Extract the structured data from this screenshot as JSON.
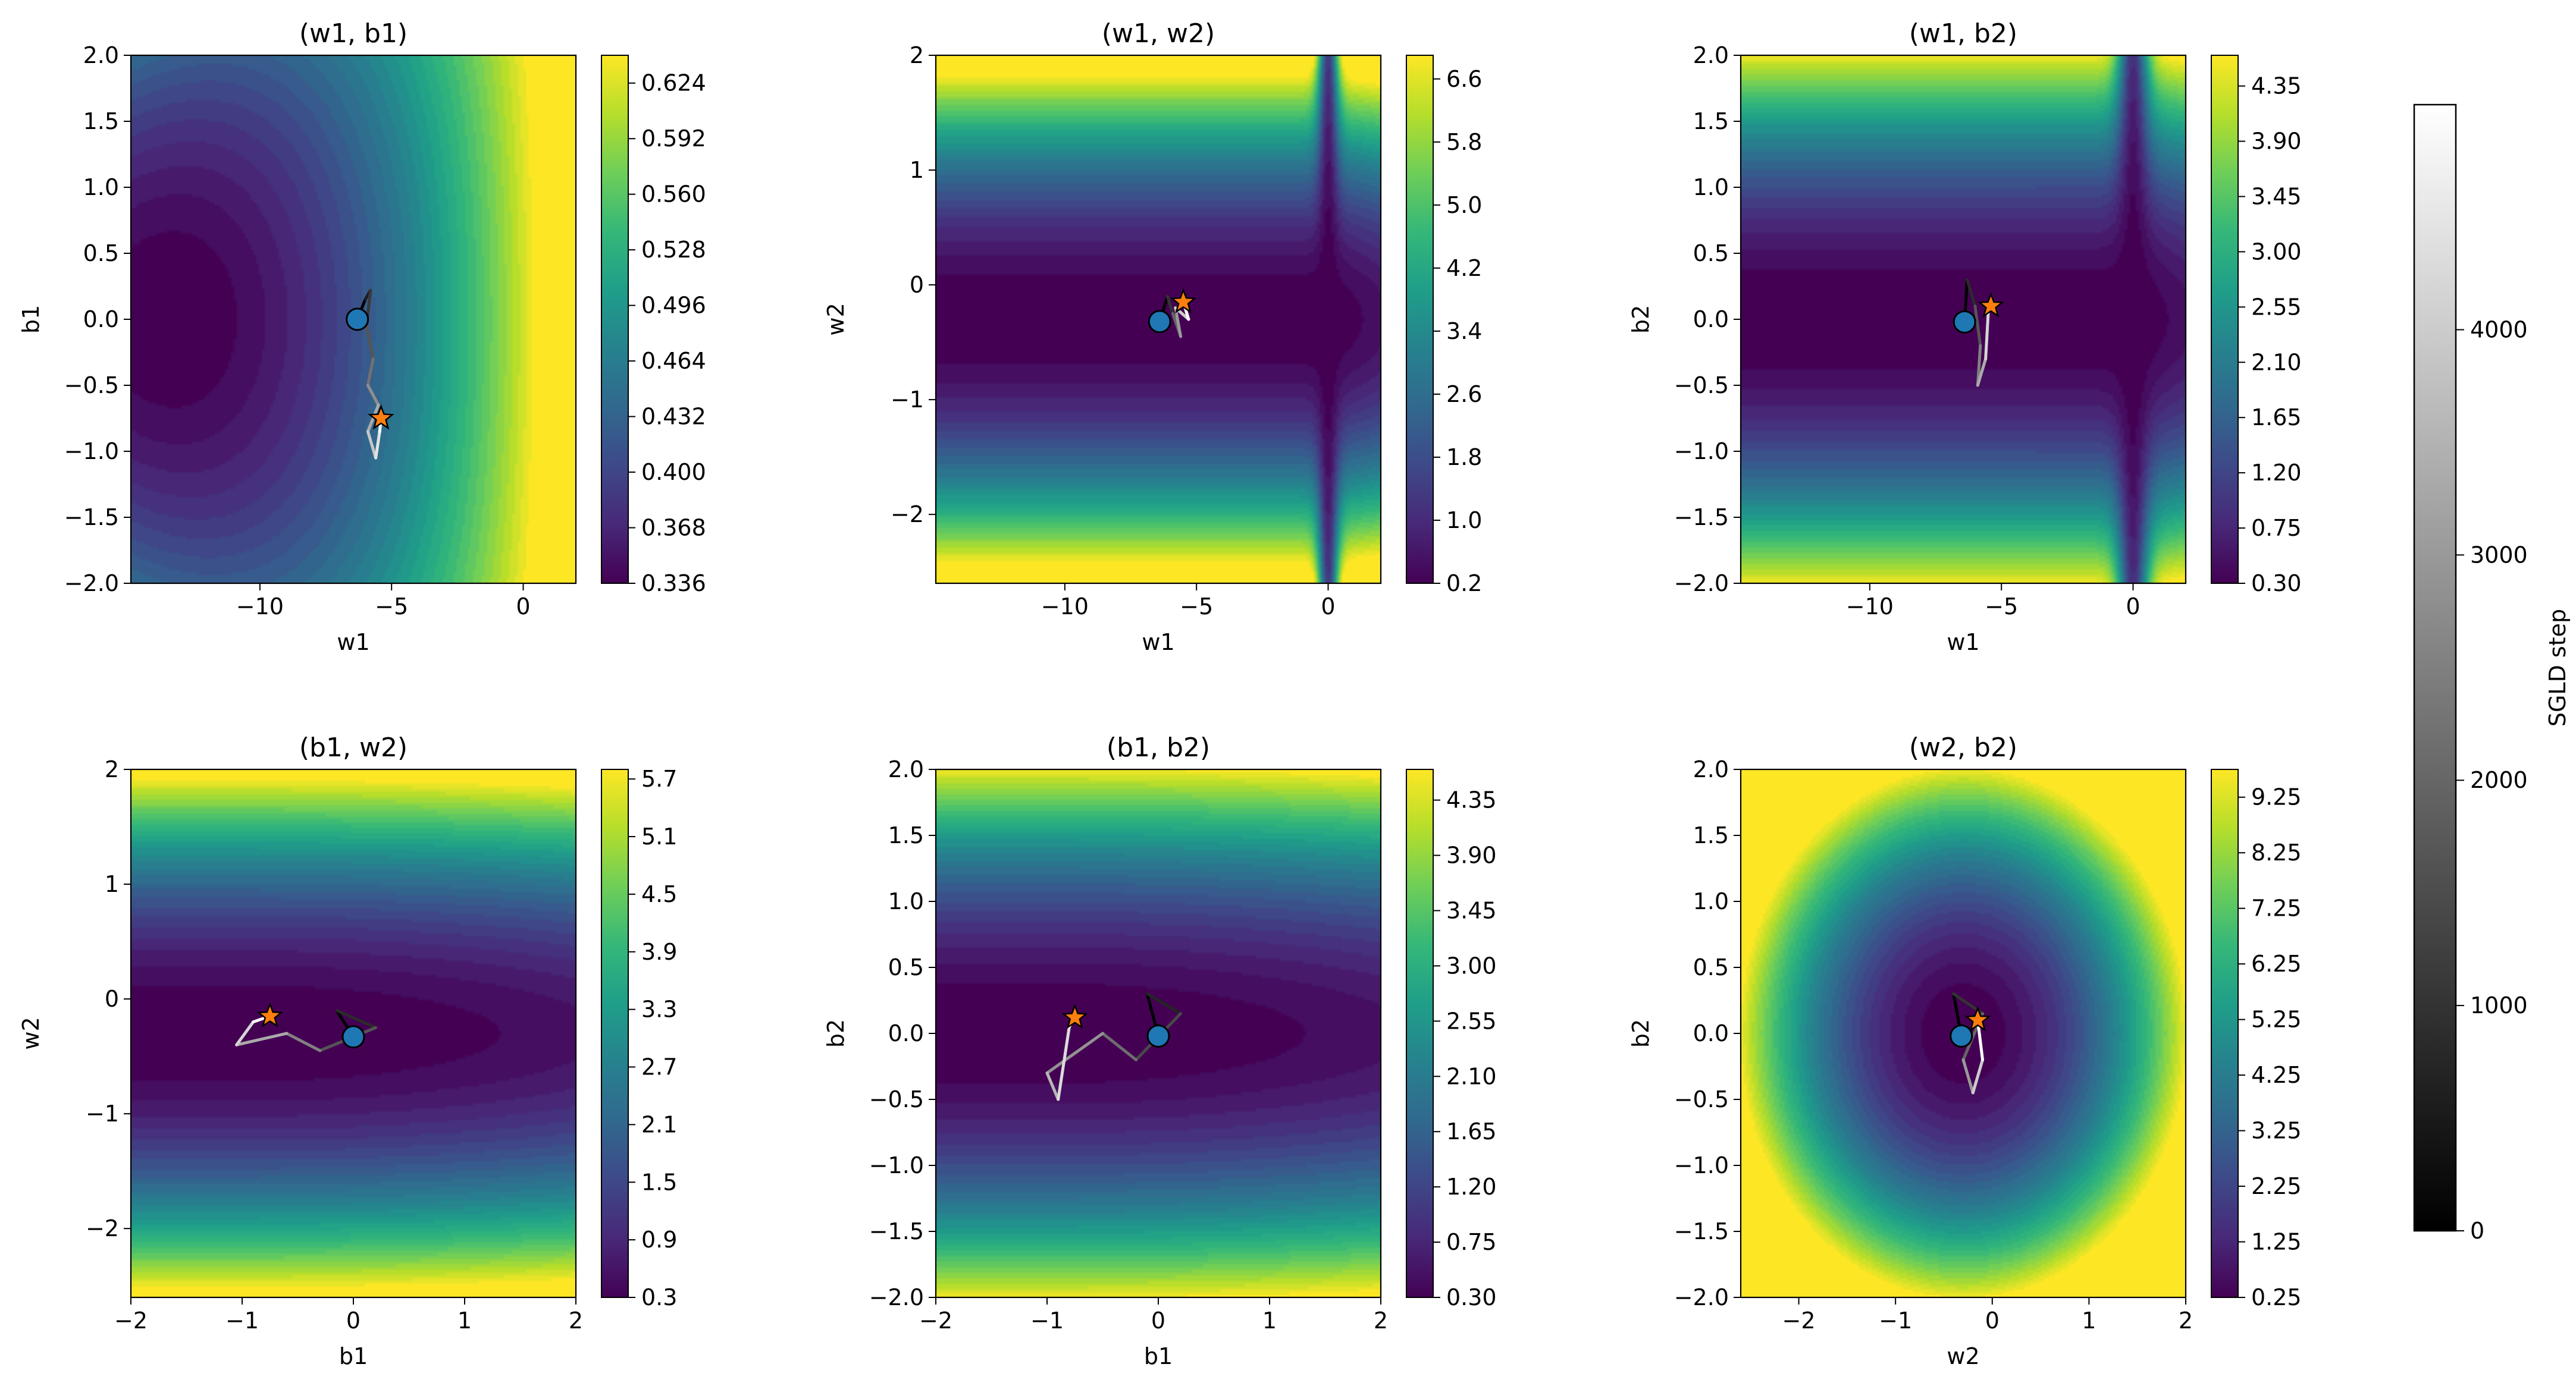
{
  "colors": {
    "viridis": [
      "#440154",
      "#482878",
      "#3e4989",
      "#31688e",
      "#26828e",
      "#1f9e89",
      "#35b779",
      "#6ece58",
      "#b5de2b",
      "#fde725"
    ],
    "trajectory_start": "#000000",
    "trajectory_end": "#ffffff",
    "start_marker": "#1f77b4",
    "end_marker": "#ff7f0e"
  },
  "chart_data": [
    {
      "type": "heatmap",
      "title": "(w1, b1)",
      "xlabel": "w1",
      "ylabel": "b1",
      "xlim": [
        -14.9,
        2
      ],
      "ylim": [
        -2,
        2
      ],
      "xticks": [
        -10,
        -5,
        0
      ],
      "xtick_labels": [
        "−10",
        "−5",
        "0"
      ],
      "yticks": [
        -2,
        -1.5,
        -1,
        -0.5,
        0,
        0.5,
        1,
        1.5,
        2
      ],
      "ytick_labels": [
        "−2.0",
        "−1.5",
        "−1.0",
        "−0.5",
        "0.0",
        "0.5",
        "1.0",
        "1.5",
        "2.0"
      ],
      "colorbar": {
        "range": [
          0.336,
          0.64
        ],
        "ticks": [
          0.336,
          0.368,
          0.4,
          0.432,
          0.464,
          0.496,
          0.528,
          0.56,
          0.592,
          0.624
        ],
        "tick_labels": [
          "0.336",
          "0.368",
          "0.400",
          "0.432",
          "0.464",
          "0.496",
          "0.528",
          "0.560",
          "0.592",
          "0.624"
        ]
      },
      "surface": {
        "kind": "bowl_x",
        "x0": -13.5,
        "sx": 16,
        "y0": 0,
        "sy": 2.4,
        "xmax": 0.75
      },
      "start": [
        -6.3,
        0.0
      ],
      "end": [
        -5.4,
        -0.75
      ],
      "trajectory": [
        [
          -6.3,
          0.0
        ],
        [
          -6.0,
          0.15
        ],
        [
          -5.8,
          0.22
        ],
        [
          -5.95,
          -0.05
        ],
        [
          -5.7,
          -0.3
        ],
        [
          -5.9,
          -0.5
        ],
        [
          -5.5,
          -0.65
        ],
        [
          -5.9,
          -0.85
        ],
        [
          -5.6,
          -1.05
        ],
        [
          -5.45,
          -0.85
        ],
        [
          -5.4,
          -0.75
        ]
      ]
    },
    {
      "type": "heatmap",
      "title": "(w1, w2)",
      "xlabel": "w1",
      "ylabel": "w2",
      "xlim": [
        -14.9,
        2
      ],
      "ylim": [
        -2.6,
        2
      ],
      "xticks": [
        -10,
        -5,
        0
      ],
      "xtick_labels": [
        "−10",
        "−5",
        "0"
      ],
      "yticks": [
        -2,
        -1,
        0,
        1,
        2
      ],
      "ytick_labels": [
        "−2",
        "−1",
        "0",
        "1",
        "2"
      ],
      "colorbar": {
        "range": [
          0.2,
          6.9
        ],
        "ticks": [
          0.2,
          1.0,
          1.8,
          2.6,
          3.4,
          4.2,
          5.0,
          5.8,
          6.6
        ],
        "tick_labels": [
          "0.2",
          "1.0",
          "1.8",
          "2.6",
          "3.4",
          "4.2",
          "5.0",
          "5.8",
          "6.6"
        ]
      },
      "surface": {
        "kind": "valley_y",
        "y0": -0.3,
        "sy": 2.1,
        "x0": 0,
        "sx": 0.4
      },
      "start": [
        -6.4,
        -0.32
      ],
      "end": [
        -5.5,
        -0.15
      ],
      "trajectory": [
        [
          -6.4,
          -0.32
        ],
        [
          -6.1,
          -0.1
        ],
        [
          -5.9,
          -0.25
        ],
        [
          -5.6,
          -0.45
        ],
        [
          -5.8,
          -0.2
        ],
        [
          -5.3,
          -0.3
        ],
        [
          -5.5,
          -0.15
        ]
      ]
    },
    {
      "type": "heatmap",
      "title": "(w1, b2)",
      "xlabel": "w1",
      "ylabel": "b2",
      "xlim": [
        -14.9,
        2
      ],
      "ylim": [
        -2,
        2
      ],
      "xticks": [
        -10,
        -5,
        0
      ],
      "xtick_labels": [
        "−10",
        "−5",
        "0"
      ],
      "yticks": [
        -2,
        -1.5,
        -1,
        -0.5,
        0,
        0.5,
        1,
        1.5,
        2
      ],
      "ytick_labels": [
        "−2.0",
        "−1.5",
        "−1.0",
        "−0.5",
        "0.0",
        "0.5",
        "1.0",
        "1.5",
        "2.0"
      ],
      "colorbar": {
        "range": [
          0.3,
          4.6
        ],
        "ticks": [
          0.3,
          0.75,
          1.2,
          1.65,
          2.1,
          2.55,
          3.0,
          3.45,
          3.9,
          4.35
        ],
        "tick_labels": [
          "0.30",
          "0.75",
          "1.20",
          "1.65",
          "2.10",
          "2.55",
          "3.00",
          "3.45",
          "3.90",
          "4.35"
        ]
      },
      "surface": {
        "kind": "valley_y",
        "y0": 0.0,
        "sy": 2.0,
        "x0": 0,
        "sx": 0.6
      },
      "start": [
        -6.4,
        -0.02
      ],
      "end": [
        -5.4,
        0.1
      ],
      "trajectory": [
        [
          -6.4,
          -0.02
        ],
        [
          -6.3,
          0.3
        ],
        [
          -6.0,
          0.1
        ],
        [
          -5.8,
          -0.2
        ],
        [
          -5.9,
          -0.5
        ],
        [
          -5.6,
          -0.3
        ],
        [
          -5.5,
          0.05
        ],
        [
          -5.4,
          0.1
        ]
      ]
    },
    {
      "type": "heatmap",
      "title": "(b1, w2)",
      "xlabel": "b1",
      "ylabel": "w2",
      "xlim": [
        -2,
        2
      ],
      "ylim": [
        -2.6,
        2
      ],
      "xticks": [
        -2,
        -1,
        0,
        1,
        2
      ],
      "xtick_labels": [
        "−2",
        "−1",
        "0",
        "1",
        "2"
      ],
      "yticks": [
        -2,
        -1,
        0,
        1,
        2
      ],
      "ytick_labels": [
        "−2",
        "−1",
        "0",
        "1",
        "2"
      ],
      "colorbar": {
        "range": [
          0.3,
          5.8
        ],
        "ticks": [
          0.3,
          0.9,
          1.5,
          2.1,
          2.7,
          3.3,
          3.9,
          4.5,
          5.1,
          5.7
        ],
        "tick_labels": [
          "0.3",
          "0.9",
          "1.5",
          "2.1",
          "2.7",
          "3.3",
          "3.9",
          "4.5",
          "5.1",
          "5.7"
        ]
      },
      "surface": {
        "kind": "valley_y",
        "y0": -0.3,
        "sy": 2.2,
        "x0": 0,
        "sx": 2.0
      },
      "start": [
        0.0,
        -0.33
      ],
      "end": [
        -0.75,
        -0.15
      ],
      "trajectory": [
        [
          0.0,
          -0.33
        ],
        [
          -0.15,
          -0.1
        ],
        [
          0.2,
          -0.25
        ],
        [
          -0.3,
          -0.45
        ],
        [
          -0.6,
          -0.3
        ],
        [
          -1.05,
          -0.4
        ],
        [
          -0.9,
          -0.2
        ],
        [
          -0.75,
          -0.15
        ]
      ]
    },
    {
      "type": "heatmap",
      "title": "(b1, b2)",
      "xlabel": "b1",
      "ylabel": "b2",
      "xlim": [
        -2,
        2
      ],
      "ylim": [
        -2,
        2
      ],
      "xticks": [
        -2,
        -1,
        0,
        1,
        2
      ],
      "xtick_labels": [
        "−2",
        "−1",
        "0",
        "1",
        "2"
      ],
      "yticks": [
        -2,
        -1.5,
        -1,
        -0.5,
        0,
        0.5,
        1,
        1.5,
        2
      ],
      "ytick_labels": [
        "−2.0",
        "−1.5",
        "−1.0",
        "−0.5",
        "0.0",
        "0.5",
        "1.0",
        "1.5",
        "2.0"
      ],
      "colorbar": {
        "range": [
          0.3,
          4.6
        ],
        "ticks": [
          0.3,
          0.75,
          1.2,
          1.65,
          2.1,
          2.55,
          3.0,
          3.45,
          3.9,
          4.35
        ],
        "tick_labels": [
          "0.30",
          "0.75",
          "1.20",
          "1.65",
          "2.10",
          "2.55",
          "3.00",
          "3.45",
          "3.90",
          "4.35"
        ]
      },
      "surface": {
        "kind": "valley_y",
        "y0": 0.0,
        "sy": 2.0,
        "x0": 0,
        "sx": 2.5
      },
      "start": [
        0.0,
        -0.02
      ],
      "end": [
        -0.75,
        0.12
      ],
      "trajectory": [
        [
          0.0,
          -0.02
        ],
        [
          -0.1,
          0.3
        ],
        [
          0.2,
          0.15
        ],
        [
          -0.2,
          -0.2
        ],
        [
          -0.5,
          0.0
        ],
        [
          -1.0,
          -0.3
        ],
        [
          -0.9,
          -0.5
        ],
        [
          -0.8,
          0.05
        ],
        [
          -0.75,
          0.12
        ]
      ]
    },
    {
      "type": "heatmap",
      "title": "(w2, b2)",
      "xlabel": "w2",
      "ylabel": "b2",
      "xlim": [
        -2.6,
        2
      ],
      "ylim": [
        -2,
        2
      ],
      "xticks": [
        -2,
        -1,
        0,
        1,
        2
      ],
      "xtick_labels": [
        "−2",
        "−1",
        "0",
        "1",
        "2"
      ],
      "yticks": [
        -2,
        -1.5,
        -1,
        -0.5,
        0,
        0.5,
        1,
        1.5,
        2
      ],
      "ytick_labels": [
        "−2.0",
        "−1.5",
        "−1.0",
        "−0.5",
        "0.0",
        "0.5",
        "1.0",
        "1.5",
        "2.0"
      ],
      "colorbar": {
        "range": [
          0.25,
          9.75
        ],
        "ticks": [
          0.25,
          1.25,
          2.25,
          3.25,
          4.25,
          5.25,
          6.25,
          7.25,
          8.25,
          9.25
        ],
        "tick_labels": [
          "0.25",
          "1.25",
          "2.25",
          "3.25",
          "4.25",
          "5.25",
          "6.25",
          "7.25",
          "8.25",
          "9.25"
        ]
      },
      "surface": {
        "kind": "ellipse",
        "x0": -0.3,
        "y0": 0.0,
        "sx": 2.3,
        "sy": 2.0
      },
      "start": [
        -0.32,
        -0.02
      ],
      "end": [
        -0.15,
        0.1
      ],
      "trajectory": [
        [
          -0.32,
          -0.02
        ],
        [
          -0.4,
          0.3
        ],
        [
          -0.1,
          0.15
        ],
        [
          -0.3,
          -0.2
        ],
        [
          -0.2,
          -0.45
        ],
        [
          -0.1,
          -0.2
        ],
        [
          -0.15,
          0.1
        ]
      ]
    }
  ],
  "shared_colorbar": {
    "label": "SGLD step",
    "range": [
      0,
      4999
    ],
    "ticks": [
      0,
      1000,
      2000,
      3000,
      4000
    ],
    "tick_labels": [
      "0",
      "1000",
      "2000",
      "3000",
      "4000"
    ]
  }
}
